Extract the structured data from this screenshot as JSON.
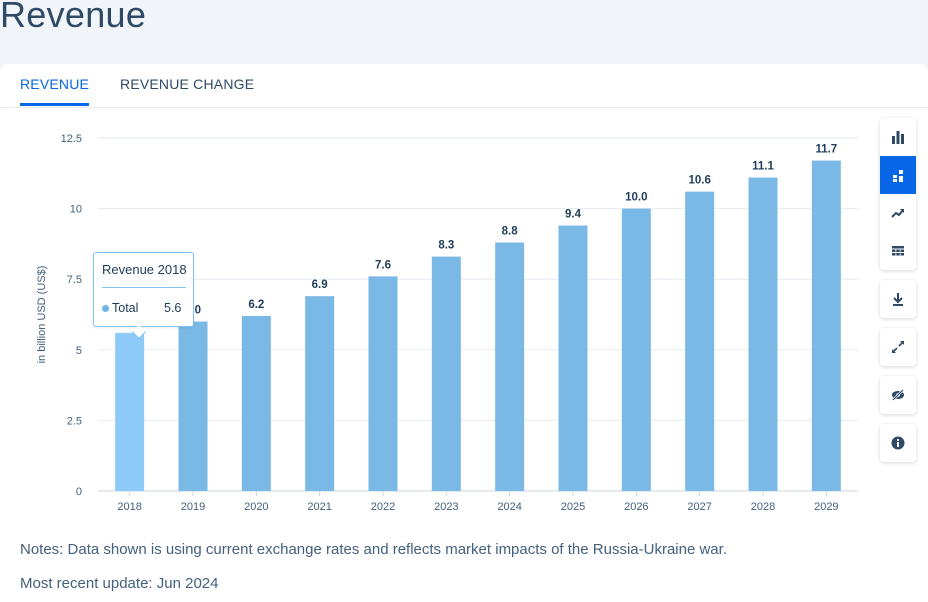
{
  "page": {
    "title": "Revenue"
  },
  "tabs": [
    {
      "label": "REVENUE",
      "active": true
    },
    {
      "label": "REVENUE CHANGE",
      "active": false
    }
  ],
  "tooltip": {
    "title": "Revenue 2018",
    "series": "Total",
    "value": "5.6"
  },
  "notes": {
    "text": "Notes: Data shown is using current exchange rates and reflects market impacts of the Russia-Ukraine war.",
    "update": "Most recent update: Jun 2024"
  },
  "toolbar": {
    "groups": [
      [
        "bar-chart-icon",
        "stacked-chart-icon",
        "trend-line-icon",
        "table-grid-icon"
      ],
      [
        "download-icon"
      ],
      [
        "expand-icon"
      ],
      [
        "hide-icon"
      ],
      [
        "info-icon"
      ]
    ]
  },
  "colors": {
    "bar": "#7ab8e6",
    "bar_highlight": "#8dcaf7",
    "accent": "#0666e5"
  },
  "chart_data": {
    "type": "bar",
    "categories": [
      "2018",
      "2019",
      "2020",
      "2021",
      "2022",
      "2023",
      "2024",
      "2025",
      "2026",
      "2027",
      "2028",
      "2029"
    ],
    "values": [
      5.6,
      6.0,
      6.2,
      6.9,
      7.6,
      8.3,
      8.8,
      9.4,
      10.0,
      10.6,
      11.1,
      11.7
    ],
    "labels": [
      "5.6",
      "6.0",
      "6.2",
      "6.9",
      "7.6",
      "8.3",
      "8.8",
      "9.4",
      "10.0",
      "10.6",
      "11.1",
      "11.7"
    ],
    "ylabel": "in billion USD (US$)",
    "ylim": [
      0,
      12.5
    ],
    "yticks": [
      "0",
      "2.5",
      "5",
      "7.5",
      "10",
      "12.5"
    ],
    "highlighted_index": 0,
    "grid": true
  }
}
